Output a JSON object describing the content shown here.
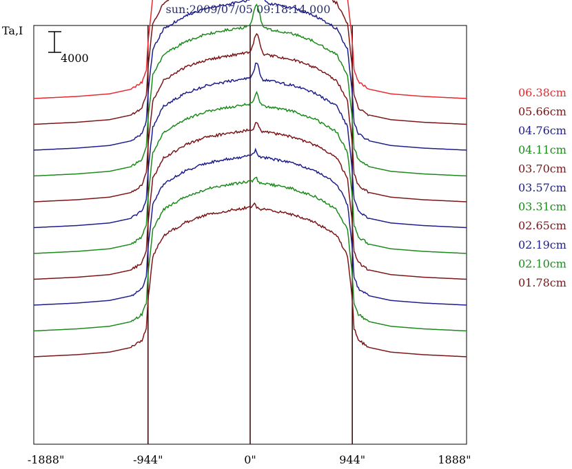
{
  "chart_data": {
    "type": "line",
    "title": "sun:2009/07/05 09:18:14.000",
    "ylabel": "Ta,I",
    "scale_bar_label": "4000",
    "scale_bar_value": 4000,
    "xlim": [
      -2000,
      2000
    ],
    "x_ticks": [
      {
        "value": -1888,
        "label": "-1888\""
      },
      {
        "value": -944,
        "label": "-944\""
      },
      {
        "value": 0,
        "label": "0\""
      },
      {
        "value": 944,
        "label": "944\""
      },
      {
        "value": 1888,
        "label": "1888\""
      }
    ],
    "vertical_lines": [
      -944,
      0,
      944
    ],
    "grid": false,
    "legend_position": "right",
    "profile": {
      "x": [
        -2000,
        -1600,
        -1300,
        -1100,
        -1000,
        -960,
        -944,
        -900,
        -800,
        -600,
        -400,
        -200,
        -100,
        -50,
        0,
        50,
        100,
        200,
        400,
        600,
        800,
        900,
        944,
        960,
        1000,
        1100,
        1300,
        1600,
        2000
      ],
      "base": [
        0,
        400,
        900,
        1800,
        3200,
        5500,
        11000,
        19500,
        23500,
        26000,
        27500,
        28300,
        28600,
        28800,
        29000,
        28800,
        28600,
        28300,
        27500,
        26000,
        23500,
        19500,
        11000,
        5500,
        3200,
        1800,
        900,
        400,
        0
      ]
    },
    "series": [
      {
        "name": "06.38cm",
        "color": "#e8282e",
        "offset": 40000,
        "peak": 11500,
        "peak_x": 50,
        "limb_width": 80
      },
      {
        "name": "05.66cm",
        "color": "#7b1416",
        "offset": 35000,
        "peak": 7500,
        "peak_x": 70,
        "limb_width": 55
      },
      {
        "name": "04.76cm",
        "color": "#1c1c8c",
        "offset": 30000,
        "peak": 5500,
        "peak_x": 70,
        "limb_width": 45
      },
      {
        "name": "04.11cm",
        "color": "#1a8a1a",
        "offset": 25000,
        "peak": 4500,
        "peak_x": 60,
        "limb_width": 40
      },
      {
        "name": "03.70cm",
        "color": "#7b1416",
        "offset": 20000,
        "peak": 3800,
        "peak_x": 60,
        "limb_width": 35
      },
      {
        "name": "03.57cm",
        "color": "#1c1c8c",
        "offset": 15000,
        "peak": 3200,
        "peak_x": 60,
        "limb_width": 30
      },
      {
        "name": "03.31cm",
        "color": "#1a8a1a",
        "offset": 10000,
        "peak": 2400,
        "peak_x": 60,
        "limb_width": 28
      },
      {
        "name": "02.65cm",
        "color": "#7b1416",
        "offset": 5000,
        "peak": 1600,
        "peak_x": 60,
        "limb_width": 25
      },
      {
        "name": "02.19cm",
        "color": "#1c1c8c",
        "offset": 0,
        "peak": 1200,
        "peak_x": 50,
        "limb_width": 20
      },
      {
        "name": "02.10cm",
        "color": "#1a8a1a",
        "offset": -5000,
        "peak": 1100,
        "peak_x": 50,
        "limb_width": 20
      },
      {
        "name": "01.78cm",
        "color": "#7b1416",
        "offset": -10000,
        "peak": 800,
        "peak_x": 40,
        "limb_width": 15
      }
    ]
  }
}
